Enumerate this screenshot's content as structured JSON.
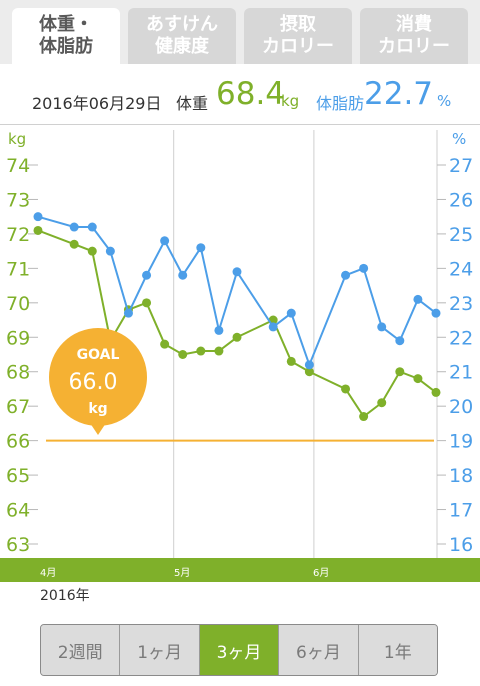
{
  "tabs": [
    {
      "line1": "体重・",
      "line2": "体脂肪",
      "active": true
    },
    {
      "line1": "あすけん",
      "line2": "健康度",
      "active": false
    },
    {
      "line1": "摂取",
      "line2": "カロリー",
      "active": false
    },
    {
      "line1": "消費",
      "line2": "カロリー",
      "active": false
    }
  ],
  "summary": {
    "date": "2016年06月29日",
    "weight_label": "体重",
    "weight_value": "68.4",
    "weight_unit": "kg",
    "fat_label": "体脂肪",
    "fat_value": "22.7",
    "fat_unit": "%"
  },
  "goal": {
    "label": "GOAL",
    "value": "66.0",
    "unit": "kg"
  },
  "colors": {
    "weight": "#7fb02a",
    "fat": "#4c9ee8",
    "goal": "#f5b133"
  },
  "chart_data": {
    "type": "line",
    "left_axis_label": "kg",
    "right_axis_label": "%",
    "left_ticks": [
      74,
      73,
      72,
      71,
      70,
      69,
      68,
      67,
      66,
      65,
      64,
      63
    ],
    "right_ticks": [
      27,
      26,
      25,
      24,
      23,
      22,
      21,
      20,
      19,
      18,
      17,
      16
    ],
    "ylim_left": [
      63,
      74
    ],
    "ylim_right": [
      16,
      27
    ],
    "x_domain_days": [
      0,
      88
    ],
    "month_labels": [
      {
        "label": "4月",
        "day": 0
      },
      {
        "label": "5月",
        "day": 30
      },
      {
        "label": "6月",
        "day": 61
      }
    ],
    "year_label": "2016年",
    "goal_value": 66.0,
    "series": [
      {
        "name": "体重",
        "axis": "left",
        "points": [
          [
            0,
            72.1
          ],
          [
            8,
            71.7
          ],
          [
            12,
            71.5
          ],
          [
            16,
            68.9
          ],
          [
            20,
            69.8
          ],
          [
            24,
            70.0
          ],
          [
            28,
            68.8
          ],
          [
            32,
            68.5
          ],
          [
            36,
            68.6
          ],
          [
            40,
            68.6
          ],
          [
            44,
            69.0
          ],
          [
            52,
            69.5
          ],
          [
            56,
            68.3
          ],
          [
            60,
            68.0
          ],
          [
            68,
            67.5
          ],
          [
            72,
            66.7
          ],
          [
            76,
            67.1
          ],
          [
            80,
            68.0
          ],
          [
            84,
            67.8
          ],
          [
            88,
            67.4
          ]
        ]
      },
      {
        "name": "体脂肪",
        "axis": "right",
        "points": [
          [
            0,
            25.5
          ],
          [
            8,
            25.2
          ],
          [
            12,
            25.2
          ],
          [
            16,
            24.5
          ],
          [
            20,
            22.7
          ],
          [
            24,
            23.8
          ],
          [
            28,
            24.8
          ],
          [
            32,
            23.8
          ],
          [
            36,
            24.6
          ],
          [
            40,
            22.2
          ],
          [
            44,
            23.9
          ],
          [
            52,
            22.3
          ],
          [
            56,
            22.7
          ],
          [
            60,
            21.2
          ],
          [
            68,
            23.8
          ],
          [
            72,
            24.0
          ],
          [
            76,
            22.3
          ],
          [
            80,
            21.9
          ],
          [
            84,
            23.1
          ],
          [
            88,
            22.7
          ]
        ]
      }
    ]
  },
  "periods": [
    {
      "label": "2週間",
      "selected": false
    },
    {
      "label": "1ヶ月",
      "selected": false
    },
    {
      "label": "3ヶ月",
      "selected": true
    },
    {
      "label": "6ヶ月",
      "selected": false
    },
    {
      "label": "1年",
      "selected": false
    }
  ]
}
